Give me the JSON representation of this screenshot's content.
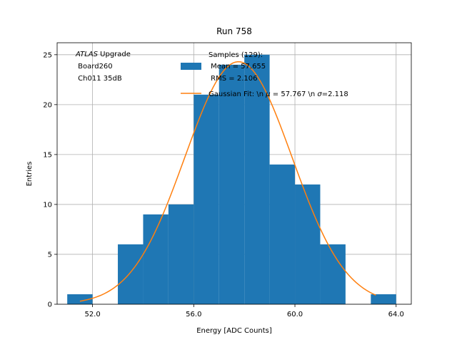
{
  "chart_data": {
    "type": "bar",
    "title": "Run 758",
    "xlabel": "Energy [ADC Counts]",
    "ylabel": "Entries",
    "xlim": [
      50.6,
      64.6
    ],
    "ylim": [
      0,
      26.2
    ],
    "grid": true,
    "x_ticks": [
      52,
      56,
      60,
      64
    ],
    "x_tick_labels": [
      "52.0",
      "56.0",
      "60.0",
      "64.0"
    ],
    "y_ticks": [
      0,
      5,
      10,
      15,
      20,
      25
    ],
    "y_tick_labels": [
      "0",
      "5",
      "10",
      "15",
      "20",
      "25"
    ],
    "histogram": {
      "bin_edges": [
        51,
        52,
        53,
        54,
        55,
        56,
        57,
        58,
        59,
        60,
        61,
        62,
        63,
        64
      ],
      "counts": [
        1,
        0,
        6,
        9,
        10,
        21,
        24,
        25,
        14,
        12,
        6,
        0,
        1
      ],
      "color": "#1f77b4"
    },
    "fit": {
      "mu": 57.767,
      "sigma": 2.118,
      "amplitude": 24.3,
      "x_range": [
        51.5,
        63.2
      ],
      "color": "#ff7f0e"
    },
    "annotation": {
      "line1_italic": "ATLAS",
      "line1_rest": " Upgrade",
      "line2": " Board260",
      "line3": " Ch011 35dB"
    },
    "legend": {
      "position": "top-right",
      "samples_line1": "Samples (129):",
      "samples_line2": " Mean = 57.655",
      "samples_line3": " RMS = 2.106",
      "fit_prefix": "Gaussian Fit: \\n ",
      "fit_mu_symbol": "μ",
      "fit_mid": " = 57.767 \\n ",
      "fit_sigma_symbol": "σ",
      "fit_suffix": "=2.118"
    }
  }
}
